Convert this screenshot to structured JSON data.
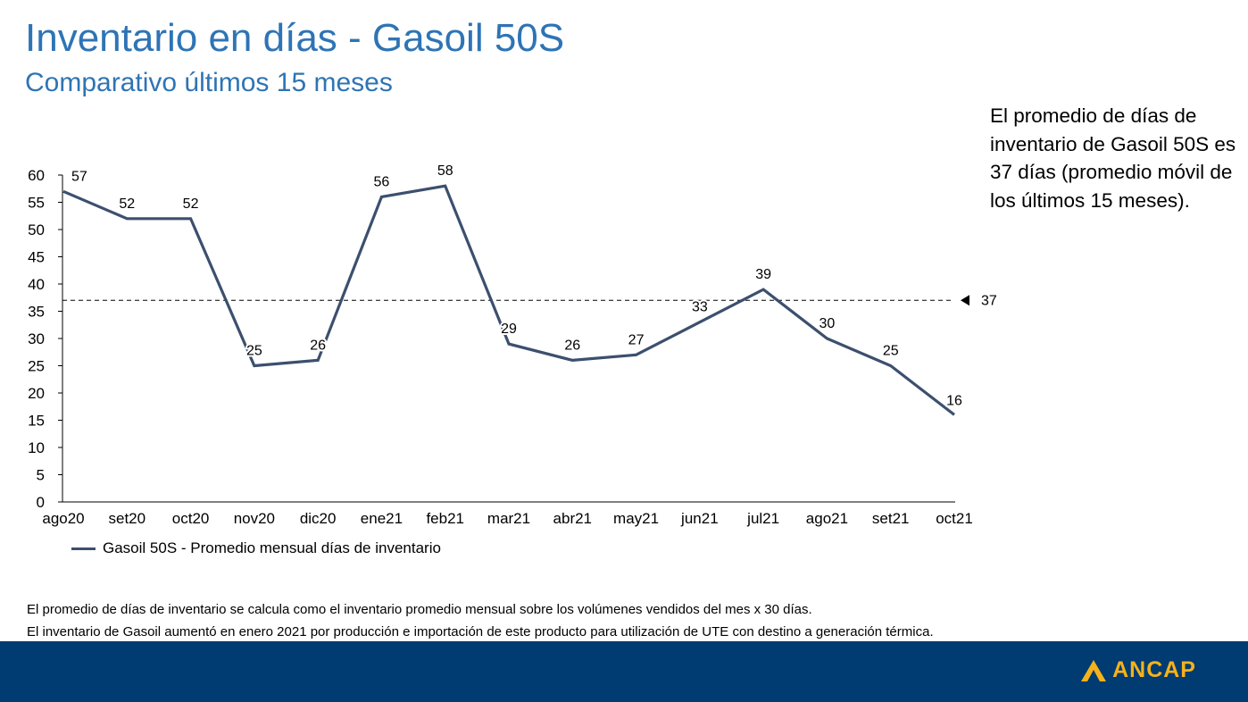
{
  "header": {
    "title": "Inventario en días - Gasoil 50S",
    "subtitle": "Comparativo últimos 15 meses"
  },
  "side_note": "El promedio de días de inventario de Gasoil 50S es 37 días (promedio móvil de los últimos 15 meses).",
  "chart_data": {
    "type": "line",
    "categories": [
      "ago20",
      "set20",
      "oct20",
      "nov20",
      "dic20",
      "ene21",
      "feb21",
      "mar21",
      "abr21",
      "may21",
      "jun21",
      "jul21",
      "ago21",
      "set21",
      "oct21"
    ],
    "series": [
      {
        "name": "Gasoil 50S - Promedio mensual días de inventario",
        "values": [
          57,
          52,
          52,
          25,
          26,
          56,
          58,
          29,
          26,
          27,
          33,
          39,
          30,
          25,
          16
        ],
        "data_labels": [
          "57",
          "52",
          "52",
          "25",
          "26",
          "56",
          "58",
          "29",
          "26",
          "27",
          "33",
          "39",
          "30",
          "25",
          "16"
        ],
        "color": "#3c4f6e"
      }
    ],
    "reference_line": {
      "value": 37,
      "label": "37",
      "style": "dashed"
    },
    "ylim": [
      0,
      60
    ],
    "yticks": [
      "0",
      "5",
      "10",
      "15",
      "20",
      "25",
      "30",
      "35",
      "40",
      "45",
      "50",
      "55",
      "60"
    ],
    "ytick_values": [
      0,
      5,
      10,
      15,
      20,
      25,
      30,
      35,
      40,
      45,
      50,
      55,
      60
    ],
    "grid": false,
    "legend_position": "bottom-left"
  },
  "footnotes": [
    "El promedio de días de inventario se calcula como el inventario promedio mensual sobre los volúmenes vendidos del mes x 30 días.",
    "El inventario de Gasoil aumentó en enero 2021 por producción e importación de este producto para utilización de UTE con destino a generación térmica."
  ],
  "footer": {
    "logo_text": "ANCAP",
    "bar_color": "#003b71",
    "logo_color": "#f5b21b"
  }
}
